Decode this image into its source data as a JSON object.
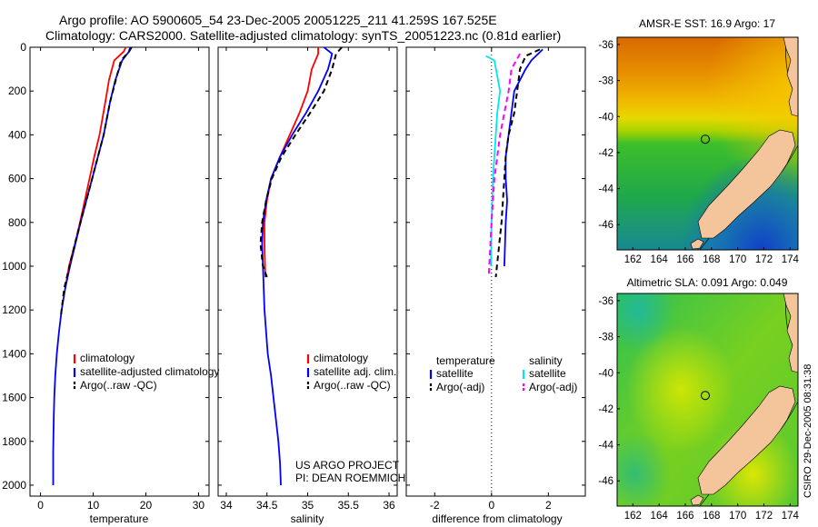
{
  "header": {
    "line1": "Argo profile: AO 5900605_54 23-Dec-2005 20051225_211 41.259S 167.525E",
    "line2": "Climatology: CARS2000. Satellite-adjusted climatology: synTS_20051223.nc (0.81d earlier)"
  },
  "credit": {
    "line1": "US ARGO PROJECT",
    "line2": "PI: DEAN ROEMMICH"
  },
  "side_stamp": "CSIRO 29-Dec-2005 08:31:38",
  "colors": {
    "climatology": "#ff0000",
    "satellite": "#0000ff",
    "argo": "#000000",
    "salinity_satellite": "#00e5ee",
    "salinity_argo": "#ff00ff",
    "land": "#f4c49b"
  },
  "chart_data": [
    {
      "type": "line",
      "id": "temperature",
      "xlabel": "temperature",
      "ylabel": "",
      "xlim": [
        -2,
        32
      ],
      "ylim": [
        2050,
        0
      ],
      "xticks": [
        0,
        10,
        20,
        30
      ],
      "yticks": [
        0,
        200,
        400,
        600,
        800,
        1000,
        1200,
        1400,
        1600,
        1800,
        2000
      ],
      "legend": [
        "climatology",
        "satellite-adjusted climatology",
        "Argo(..raw -QC)"
      ],
      "legend_position": "lower-center",
      "series": [
        {
          "name": "climatology",
          "color": "red",
          "dash": "solid",
          "x": [
            16.2,
            15.8,
            14.0,
            13.0,
            12.3,
            11.2,
            10.2,
            9.3,
            8.4,
            7.5,
            6.5,
            5.4,
            4.7
          ],
          "y": [
            0,
            20,
            60,
            150,
            250,
            400,
            500,
            600,
            700,
            800,
            900,
            1000,
            1100
          ]
        },
        {
          "name": "satellite-adjusted climatology",
          "color": "blue",
          "dash": "solid",
          "x": [
            17.0,
            16.8,
            15.5,
            14.2,
            13.2,
            12.0,
            10.9,
            9.8,
            8.7,
            7.6,
            6.6,
            5.6,
            4.7,
            4.0,
            3.5,
            3.1,
            2.8,
            2.6,
            2.5,
            2.4,
            2.4
          ],
          "y": [
            0,
            20,
            60,
            150,
            250,
            400,
            500,
            600,
            700,
            800,
            900,
            1000,
            1100,
            1200,
            1300,
            1400,
            1500,
            1600,
            1700,
            1850,
            2000
          ]
        },
        {
          "name": "Argo(..raw -QC)",
          "color": "black",
          "dash": "dashed",
          "x": [
            17.3,
            16.8,
            15.3,
            14.3,
            13.2,
            12.0,
            10.9,
            9.8,
            8.7,
            7.6,
            6.5,
            5.5,
            4.5,
            3.9
          ],
          "y": [
            0,
            20,
            60,
            150,
            250,
            400,
            500,
            600,
            700,
            800,
            900,
            1000,
            1100,
            1220
          ]
        }
      ]
    },
    {
      "type": "line",
      "id": "salinity",
      "xlabel": "salinity",
      "ylabel": "",
      "xlim": [
        33.9,
        36.1
      ],
      "ylim": [
        2050,
        0
      ],
      "xticks": [
        34,
        34.5,
        35,
        35.5,
        36
      ],
      "legend": [
        "climatology",
        "satellite adj. clim.",
        "Argo(..raw -QC)"
      ],
      "legend_position": "lower-center",
      "series": [
        {
          "name": "climatology",
          "color": "red",
          "dash": "solid",
          "x": [
            35.13,
            35.13,
            35.05,
            35.0,
            34.9,
            34.78,
            34.66,
            34.55,
            34.5,
            34.47,
            34.47,
            34.48
          ],
          "y": [
            0,
            30,
            100,
            200,
            300,
            400,
            500,
            600,
            700,
            800,
            900,
            1050
          ]
        },
        {
          "name": "satellite adj. clim.",
          "color": "blue",
          "dash": "solid",
          "x": [
            35.2,
            35.3,
            35.25,
            35.13,
            34.98,
            34.81,
            34.66,
            34.55,
            34.49,
            34.45,
            34.44,
            34.45,
            34.47,
            34.51,
            34.55,
            34.58,
            34.61,
            34.64,
            34.66,
            34.67
          ],
          "y": [
            0,
            30,
            100,
            200,
            300,
            400,
            500,
            600,
            700,
            800,
            900,
            1000,
            1200,
            1400,
            1500,
            1600,
            1700,
            1800,
            1900,
            2000
          ]
        },
        {
          "name": "Argo(..raw -QC)",
          "color": "black",
          "dash": "dashed",
          "x": [
            35.42,
            35.35,
            35.3,
            35.2,
            35.03,
            34.85,
            34.68,
            34.56,
            34.49,
            34.44,
            34.42,
            34.45,
            34.5
          ],
          "y": [
            0,
            30,
            100,
            200,
            300,
            400,
            500,
            600,
            700,
            800,
            900,
            1000,
            1050
          ]
        }
      ]
    },
    {
      "type": "line",
      "id": "difference",
      "xlabel": "difference from climatology",
      "ylabel": "",
      "xlim": [
        -3,
        3.3
      ],
      "ylim": [
        2050,
        0
      ],
      "xticks": [
        -2,
        0,
        2
      ],
      "legend_titles": [
        "temperature",
        "salinity"
      ],
      "legend": [
        "satellite",
        "Argo(-adj)",
        "satellite",
        "Argo(-adj)"
      ],
      "legend_position": "lower-center",
      "series": [
        {
          "name": "temperature satellite",
          "color": "blue",
          "dash": "solid",
          "x": [
            1.8,
            1.4,
            1.2,
            0.8,
            0.7,
            0.6,
            0.5,
            0.5,
            0.55,
            0.5,
            0.45
          ],
          "y": [
            10,
            60,
            100,
            200,
            300,
            400,
            500,
            600,
            700,
            800,
            1000
          ]
        },
        {
          "name": "temperature Argo(-adj)",
          "color": "black",
          "dash": "dashed",
          "x": [
            1.7,
            1.2,
            1.0,
            0.9,
            0.8,
            0.6,
            0.5,
            0.45,
            0.35,
            0.15
          ],
          "y": [
            10,
            40,
            100,
            200,
            300,
            400,
            500,
            600,
            800,
            1050
          ]
        },
        {
          "name": "salinity satellite",
          "color": "cyan",
          "dash": "solid",
          "x": [
            -0.2,
            0.1,
            0.3,
            0.2,
            0.15,
            0.1,
            0.05,
            0.0,
            -0.02
          ],
          "y": [
            40,
            60,
            200,
            300,
            400,
            500,
            600,
            800,
            1000
          ]
        },
        {
          "name": "salinity Argo(-adj)",
          "color": "magenta",
          "dash": "dashed",
          "x": [
            1.0,
            0.7,
            0.6,
            0.45,
            0.3,
            0.2,
            0.1,
            0.0,
            -0.1
          ],
          "y": [
            30,
            100,
            200,
            300,
            400,
            500,
            600,
            800,
            1050
          ]
        }
      ]
    },
    {
      "type": "heatmap",
      "id": "sst_map",
      "title": "AMSR-E SST: 16.9 Argo: 17",
      "xlim": [
        160.8,
        174.6
      ],
      "ylim": [
        -47.4,
        -35.6
      ],
      "xticks": [
        162,
        164,
        166,
        168,
        170,
        172,
        174
      ],
      "yticks": [
        -36,
        -38,
        -40,
        -42,
        -44,
        -46
      ],
      "marker": {
        "lon": 167.525,
        "lat": -41.259
      }
    },
    {
      "type": "heatmap",
      "id": "sla_map",
      "title": "Altimetric SLA: 0.091 Argo: 0.049",
      "xlim": [
        160.8,
        174.6
      ],
      "ylim": [
        -47.4,
        -35.6
      ],
      "xticks": [
        162,
        164,
        166,
        168,
        170,
        172,
        174
      ],
      "yticks": [
        -36,
        -38,
        -40,
        -42,
        -44,
        -46
      ],
      "marker": {
        "lon": 167.525,
        "lat": -41.259
      }
    }
  ]
}
